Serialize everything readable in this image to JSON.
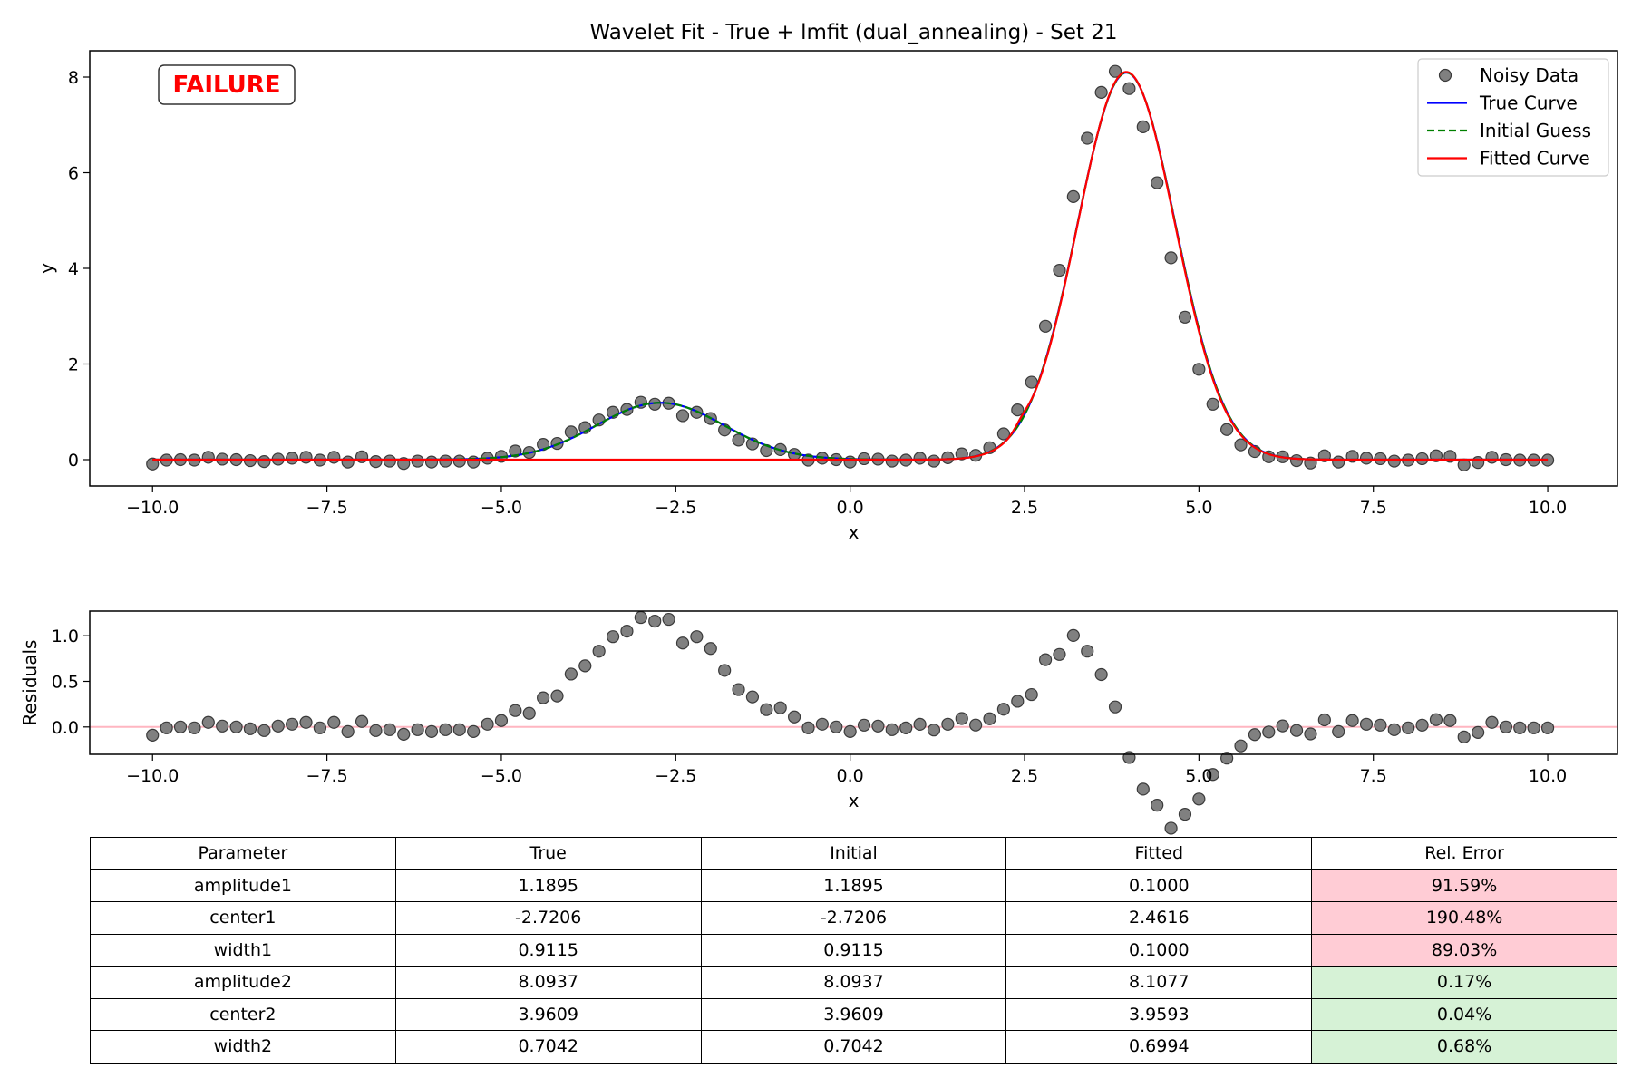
{
  "chart_data": [
    {
      "type": "scatter+line",
      "title": "Wavelet Fit - True + lmfit (dual_annealing) - Set 21",
      "xlabel": "x",
      "ylabel": "y",
      "xlim": [
        -10.9,
        11.0
      ],
      "ylim": [
        -0.55,
        8.55
      ],
      "xticks": [
        -10.0,
        -7.5,
        -5.0,
        -2.5,
        0.0,
        2.5,
        5.0,
        7.5,
        10.0
      ],
      "xtick_labels": [
        "−10.0",
        "−7.5",
        "−5.0",
        "−2.5",
        "0.0",
        "2.5",
        "5.0",
        "7.5",
        "10.0"
      ],
      "yticks": [
        0,
        2,
        4,
        6,
        8
      ],
      "ytick_labels": [
        "0",
        "2",
        "4",
        "6",
        "8"
      ],
      "grid": false,
      "legend_position": "top-right",
      "annotation": "FAILURE",
      "series": [
        {
          "name": "Noisy Data",
          "style": "markers",
          "color": "#808080",
          "x": [
            -10.0,
            -9.8,
            -9.6,
            -9.4,
            -9.2,
            -9.0,
            -8.8,
            -8.6,
            -8.4,
            -8.2,
            -8.0,
            -7.8,
            -7.6,
            -7.4,
            -7.2,
            -7.0,
            -6.8,
            -6.6,
            -6.4,
            -6.2,
            -6.0,
            -5.8,
            -5.6,
            -5.4,
            -5.2,
            -5.0,
            -4.8,
            -4.6,
            -4.4,
            -4.2,
            -4.0,
            -3.8,
            -3.6,
            -3.4,
            -3.2,
            -3.0,
            -2.8,
            -2.6,
            -2.4,
            -2.2,
            -2.0,
            -1.8,
            -1.6,
            -1.4,
            -1.2,
            -1.0,
            -0.8,
            -0.6,
            -0.4,
            -0.2,
            0.0,
            0.2,
            0.4,
            0.6,
            0.8,
            1.0,
            1.2,
            1.4,
            1.6,
            1.8,
            2.0,
            2.2,
            2.4,
            2.6,
            2.8,
            3.0,
            3.2,
            3.4,
            3.6,
            3.8,
            4.0,
            4.2,
            4.4,
            4.6,
            4.8,
            5.0,
            5.2,
            5.4,
            5.6,
            5.8,
            6.0,
            6.2,
            6.4,
            6.6,
            6.8,
            7.0,
            7.2,
            7.4,
            7.6,
            7.8,
            8.0,
            8.2,
            8.4,
            8.6,
            8.8,
            9.0,
            9.2,
            9.4,
            9.6,
            9.8,
            10.0
          ],
          "y": [
            -0.09,
            -0.01,
            0.0,
            -0.01,
            0.05,
            0.01,
            0.0,
            -0.02,
            -0.04,
            0.01,
            0.03,
            0.05,
            -0.01,
            0.05,
            -0.05,
            0.06,
            -0.04,
            -0.03,
            -0.08,
            -0.03,
            -0.05,
            -0.03,
            -0.03,
            -0.05,
            0.03,
            0.07,
            0.18,
            0.15,
            0.32,
            0.34,
            0.58,
            0.67,
            0.83,
            0.99,
            1.05,
            1.2,
            1.16,
            1.18,
            0.92,
            0.99,
            0.86,
            0.62,
            0.41,
            0.33,
            0.19,
            0.21,
            0.11,
            -0.01,
            0.03,
            0.0,
            -0.05,
            0.02,
            0.01,
            -0.03,
            -0.01,
            0.03,
            -0.03,
            0.04,
            0.12,
            0.09,
            0.25,
            0.54,
            1.04,
            1.62,
            2.79,
            3.96,
            5.5,
            6.72,
            7.68,
            8.12,
            7.76,
            6.96,
            5.79,
            4.22,
            2.98,
            1.89,
            1.16,
            0.63,
            0.31,
            0.17,
            0.06,
            0.06,
            -0.02,
            -0.07,
            0.08,
            -0.05,
            0.07,
            0.03,
            0.02,
            -0.03,
            -0.01,
            0.02,
            0.08,
            0.07,
            -0.11,
            -0.06,
            0.05,
            0.0,
            -0.01,
            -0.01,
            -0.01
          ]
        },
        {
          "name": "True Curve",
          "style": "solid",
          "color": "#0000ff",
          "model": "sum_of_gaussians",
          "params": {
            "amplitude1": 1.1895,
            "center1": -2.7206,
            "width1": 0.9115,
            "amplitude2": 8.0937,
            "center2": 3.9609,
            "width2": 0.7042
          }
        },
        {
          "name": "Initial Guess",
          "style": "dashed",
          "color": "#008000",
          "model": "sum_of_gaussians",
          "params": {
            "amplitude1": 1.1895,
            "center1": -2.7206,
            "width1": 0.9115,
            "amplitude2": 8.0937,
            "center2": 3.9609,
            "width2": 0.7042
          }
        },
        {
          "name": "Fitted Curve",
          "style": "solid",
          "color": "#ff0000",
          "model": "sum_of_gaussians",
          "params": {
            "amplitude1": 0.1,
            "center1": 2.4616,
            "width1": 0.1,
            "amplitude2": 8.1077,
            "center2": 3.9593,
            "width2": 0.6994
          }
        }
      ]
    },
    {
      "type": "scatter",
      "title": "",
      "xlabel": "x",
      "ylabel": "Residuals",
      "xlim": [
        -10.9,
        11.0
      ],
      "ylim": [
        -0.3,
        1.27
      ],
      "xticks": [
        -10.0,
        -7.5,
        -5.0,
        -2.5,
        0.0,
        2.5,
        5.0,
        7.5,
        10.0
      ],
      "xtick_labels": [
        "−10.0",
        "−7.5",
        "−5.0",
        "−2.5",
        "0.0",
        "2.5",
        "5.0",
        "7.5",
        "10.0"
      ],
      "yticks": [
        0.0,
        0.5,
        1.0
      ],
      "ytick_labels": [
        "0.0",
        "0.5",
        "1.0"
      ],
      "grid": false,
      "reference_line": {
        "y": 0,
        "color": "#ffb6c1"
      },
      "series": [
        {
          "style": "markers",
          "color": "#808080",
          "residual_of": "Noisy Data",
          "minus": "Fitted Curve"
        }
      ]
    }
  ],
  "table": {
    "headers": [
      "Parameter",
      "True",
      "Initial",
      "Fitted",
      "Rel. Error"
    ],
    "rows": [
      [
        "amplitude1",
        "1.1895",
        "1.1895",
        "0.1000",
        "91.59%"
      ],
      [
        "center1",
        "-2.7206",
        "-2.7206",
        "2.4616",
        "190.48%"
      ],
      [
        "width1",
        "0.9115",
        "0.9115",
        "0.1000",
        "89.03%"
      ],
      [
        "amplitude2",
        "8.0937",
        "8.0937",
        "8.1077",
        "0.17%"
      ],
      [
        "center2",
        "3.9609",
        "3.9609",
        "3.9593",
        "0.04%"
      ],
      [
        "width2",
        "0.7042",
        "0.7042",
        "0.6994",
        "0.68%"
      ]
    ],
    "error_colors": {
      "bad": "#ffccd5",
      "good": "#d6f2d6"
    },
    "error_status": [
      "bad",
      "bad",
      "bad",
      "good",
      "good",
      "good"
    ]
  }
}
